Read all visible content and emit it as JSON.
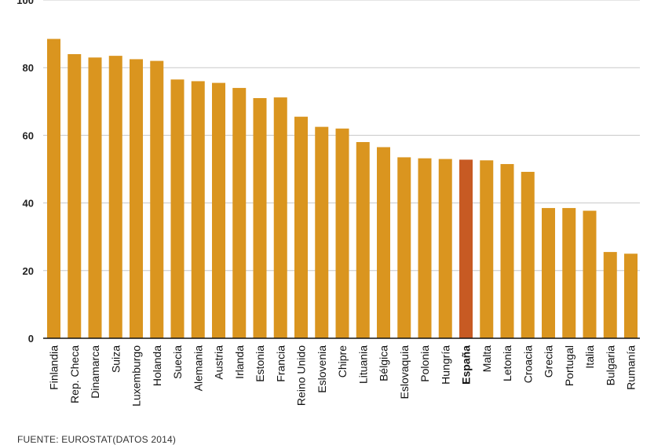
{
  "chart_data": {
    "type": "bar",
    "title": "",
    "xlabel": "",
    "ylabel": "",
    "ylim": [
      0,
      100
    ],
    "yticks": [
      0,
      20,
      40,
      60,
      80,
      100
    ],
    "grid": true,
    "categories": [
      "Finlandia",
      "Rep. Checa",
      "Dinamarca",
      "Suiza",
      "Luxemburgo",
      "Holanda",
      "Suecia",
      "Alemania",
      "Austria",
      "Irlanda",
      "Estonia",
      "Francia",
      "Reino Unido",
      "Eslovenia",
      "Chipre",
      "Lituania",
      "Bélgica",
      "Eslovaquia",
      "Polonia",
      "Hungría",
      "España",
      "Malta",
      "Letonia",
      "Croacia",
      "Grecia",
      "Portugal",
      "Italia",
      "Bulgaria",
      "Rumanía"
    ],
    "values": [
      88.5,
      84,
      83,
      83.5,
      82.5,
      82,
      76.5,
      76,
      75.5,
      74,
      71,
      71.2,
      65.5,
      62.5,
      62,
      58,
      56.5,
      53.5,
      53.2,
      53,
      52.8,
      52.6,
      51.5,
      49.2,
      38.5,
      38.5,
      37.7,
      25.5,
      25
    ],
    "highlight": "España",
    "bar_color": "#DA951F",
    "highlight_color": "#C75A23"
  },
  "footer": {
    "source": "FUENTE: EUROSTAT(DATOS 2014)"
  }
}
